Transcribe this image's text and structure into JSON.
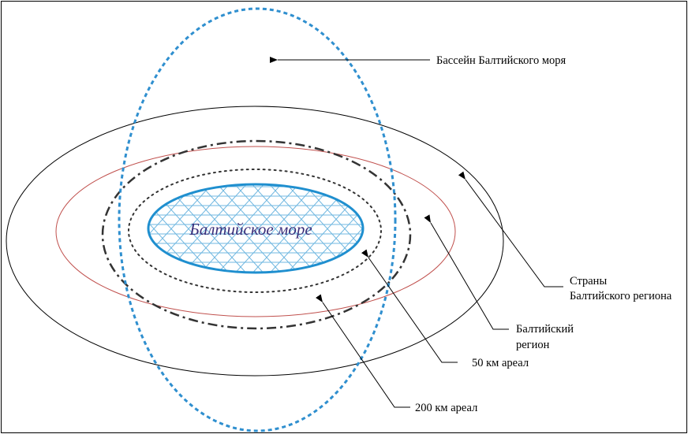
{
  "diagram": {
    "center_label": "Балтийское море",
    "labels": {
      "basin": "Бассейн Балтийского моря",
      "countries_line1": "Страны",
      "countries_line2": "Балтийского региона",
      "region_line1": "Балтийский",
      "region_line2": "регион",
      "zone50": "50 км ареал",
      "zone200": "200 км ареал"
    },
    "colors": {
      "basin_outline": "#2f8fcf",
      "sea_outline": "#1f8fcf",
      "sea_hatch": "#6fb7e0",
      "sea_text": "#3a2f7a",
      "region_outline": "#c0504d",
      "countries_outline": "#000000",
      "zone_outline": "#333333",
      "text": "#000000"
    }
  }
}
